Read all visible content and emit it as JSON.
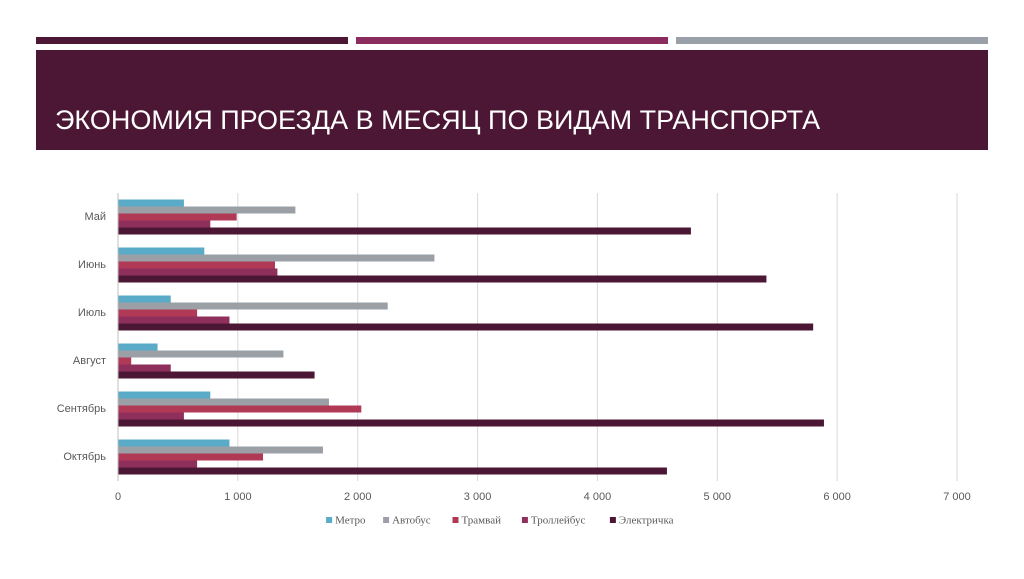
{
  "chart_data": {
    "type": "bar",
    "orientation": "horizontal",
    "title": "ЭКОНОМИЯ ПРОЕЗДА В МЕСЯЦ ПО ВИДАМ ТРАНСПОРТА",
    "categories": [
      "Май",
      "Июнь",
      "Июль",
      "Август",
      "Сентябрь",
      "Октябрь"
    ],
    "series": [
      {
        "name": "Метро",
        "color": "#5aabc8",
        "values": [
          550,
          720,
          440,
          330,
          770,
          930
        ]
      },
      {
        "name": "Автобус",
        "color": "#9aa0a6",
        "values": [
          1480,
          2640,
          2250,
          1380,
          1760,
          1710
        ]
      },
      {
        "name": "Трамвай",
        "color": "#b03a55",
        "values": [
          990,
          1310,
          660,
          110,
          2030,
          1210
        ]
      },
      {
        "name": "Троллейбус",
        "color": "#8f2f5c",
        "values": [
          770,
          1330,
          930,
          440,
          550,
          660
        ]
      },
      {
        "name": "Электричка",
        "color": "#4c1734",
        "values": [
          4780,
          5410,
          5800,
          1640,
          5890,
          4580
        ]
      }
    ],
    "xlim": [
      0,
      7000
    ],
    "xticks": [
      0,
      {
        "value": 1000,
        "label": "1 000"
      },
      {
        "value": 2000,
        "label": "2 000"
      },
      {
        "value": 3000,
        "label": "3 000"
      },
      {
        "value": 4000,
        "label": "4 000"
      },
      {
        "value": 5000,
        "label": "5 000"
      },
      {
        "value": 6000,
        "label": "6 000"
      },
      {
        "value": 7000,
        "label": "7 000"
      }
    ],
    "grid": true,
    "legend": "bottom"
  }
}
